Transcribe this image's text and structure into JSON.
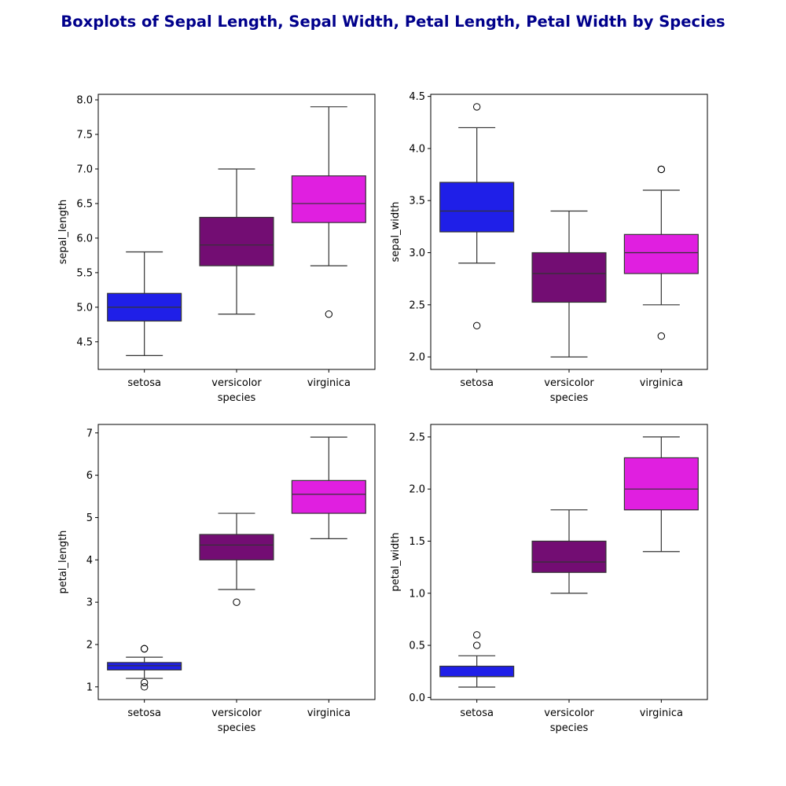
{
  "figure": {
    "title": "Boxplots of Sepal Length, Sepal Width, Petal Length, Petal Width by Species",
    "title_color": "#00008b"
  },
  "palette": {
    "setosa": "#1f1fe8",
    "versicolor": "#730d73",
    "virginica": "#e01fe0"
  },
  "chart_data": [
    {
      "type": "boxplot",
      "xlabel": "species",
      "ylabel": "sepal_length",
      "categories": [
        "setosa",
        "versicolor",
        "virginica"
      ],
      "ylim": [
        4.1,
        8.08
      ],
      "yticks": [
        4.5,
        5.0,
        5.5,
        6.0,
        6.5,
        7.0,
        7.5,
        8.0
      ],
      "ytick_labels": [
        "4.5",
        "5.0",
        "5.5",
        "6.0",
        "6.5",
        "7.0",
        "7.5",
        "8.0"
      ],
      "boxes": [
        {
          "q1": 4.8,
          "median": 5.0,
          "q3": 5.2,
          "whisker_low": 4.3,
          "whisker_high": 5.8,
          "outliers": []
        },
        {
          "q1": 5.6,
          "median": 5.9,
          "q3": 6.3,
          "whisker_low": 4.9,
          "whisker_high": 7.0,
          "outliers": []
        },
        {
          "q1": 6.225,
          "median": 6.5,
          "q3": 6.9,
          "whisker_low": 5.6,
          "whisker_high": 7.9,
          "outliers": [
            4.9
          ]
        }
      ]
    },
    {
      "type": "boxplot",
      "xlabel": "species",
      "ylabel": "sepal_width",
      "categories": [
        "setosa",
        "versicolor",
        "virginica"
      ],
      "ylim": [
        1.88,
        4.52
      ],
      "yticks": [
        2.0,
        2.5,
        3.0,
        3.5,
        4.0,
        4.5
      ],
      "ytick_labels": [
        "2.0",
        "2.5",
        "3.0",
        "3.5",
        "4.0",
        "4.5"
      ],
      "boxes": [
        {
          "q1": 3.2,
          "median": 3.4,
          "q3": 3.675,
          "whisker_low": 2.9,
          "whisker_high": 4.2,
          "outliers": [
            4.4,
            2.3
          ]
        },
        {
          "q1": 2.525,
          "median": 2.8,
          "q3": 3.0,
          "whisker_low": 2.0,
          "whisker_high": 3.4,
          "outliers": []
        },
        {
          "q1": 2.8,
          "median": 3.0,
          "q3": 3.175,
          "whisker_low": 2.5,
          "whisker_high": 3.6,
          "outliers": [
            3.8,
            3.8,
            2.2
          ]
        }
      ]
    },
    {
      "type": "boxplot",
      "xlabel": "species",
      "ylabel": "petal_length",
      "categories": [
        "setosa",
        "versicolor",
        "virginica"
      ],
      "ylim": [
        0.7,
        7.2
      ],
      "yticks": [
        1,
        2,
        3,
        4,
        5,
        6,
        7
      ],
      "ytick_labels": [
        "1",
        "2",
        "3",
        "4",
        "5",
        "6",
        "7"
      ],
      "boxes": [
        {
          "q1": 1.4,
          "median": 1.5,
          "q3": 1.575,
          "whisker_low": 1.2,
          "whisker_high": 1.7,
          "outliers": [
            1.9,
            1.9,
            1.1,
            1.0
          ]
        },
        {
          "q1": 4.0,
          "median": 4.35,
          "q3": 4.6,
          "whisker_low": 3.3,
          "whisker_high": 5.1,
          "outliers": [
            3.0
          ]
        },
        {
          "q1": 5.1,
          "median": 5.55,
          "q3": 5.875,
          "whisker_low": 4.5,
          "whisker_high": 6.9,
          "outliers": []
        }
      ]
    },
    {
      "type": "boxplot",
      "xlabel": "species",
      "ylabel": "petal_width",
      "categories": [
        "setosa",
        "versicolor",
        "virginica"
      ],
      "ylim": [
        -0.02,
        2.62
      ],
      "yticks": [
        0.0,
        0.5,
        1.0,
        1.5,
        2.0,
        2.5
      ],
      "ytick_labels": [
        "0.0",
        "0.5",
        "1.0",
        "1.5",
        "2.0",
        "2.5"
      ],
      "boxes": [
        {
          "q1": 0.2,
          "median": 0.2,
          "q3": 0.3,
          "whisker_low": 0.1,
          "whisker_high": 0.4,
          "outliers": [
            0.6,
            0.5
          ]
        },
        {
          "q1": 1.2,
          "median": 1.3,
          "q3": 1.5,
          "whisker_low": 1.0,
          "whisker_high": 1.8,
          "outliers": []
        },
        {
          "q1": 1.8,
          "median": 2.0,
          "q3": 2.3,
          "whisker_low": 1.4,
          "whisker_high": 2.5,
          "outliers": []
        }
      ]
    }
  ]
}
